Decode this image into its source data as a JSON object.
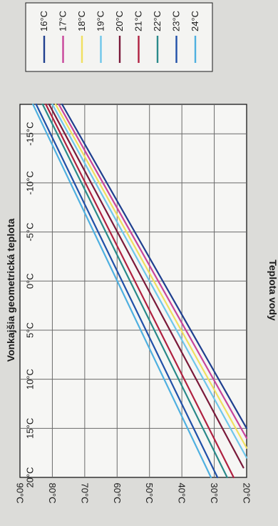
{
  "chart_data": {
    "type": "line",
    "xlabel": "Vonkajšia geometrická teplota",
    "ylabel": "Teplota vody",
    "x_ticks": [
      "20°C",
      "15°C",
      "10°C",
      "5°C",
      "0°C",
      "-5°C",
      "-10°C",
      "-15°C"
    ],
    "y_ticks": [
      "20°C",
      "30°C",
      "40°C",
      "50°C",
      "60°C",
      "70°C",
      "80°C",
      "90°C"
    ],
    "xlim": [
      20,
      -18
    ],
    "ylim": [
      20,
      90
    ],
    "grid": true,
    "legend_position": "top-right",
    "series": [
      {
        "name": "16°C",
        "color": "#1f3f8f",
        "x": [
          15,
          -18
        ],
        "y": [
          20,
          77
        ]
      },
      {
        "name": "17°C",
        "color": "#c8449a",
        "x": [
          16,
          -18
        ],
        "y": [
          20,
          78
        ]
      },
      {
        "name": "18°C",
        "color": "#f0e060",
        "x": [
          17,
          -18
        ],
        "y": [
          20,
          79
        ]
      },
      {
        "name": "19°C",
        "color": "#6ec6ea",
        "x": [
          18,
          -18
        ],
        "y": [
          20,
          80
        ]
      },
      {
        "name": "20°C",
        "color": "#7a1a3a",
        "x": [
          19,
          -18
        ],
        "y": [
          21,
          81
        ]
      },
      {
        "name": "21°C",
        "color": "#b02040",
        "x": [
          20,
          -18
        ],
        "y": [
          24,
          82
        ]
      },
      {
        "name": "22°C",
        "color": "#2a8a8a",
        "x": [
          20,
          -18
        ],
        "y": [
          26,
          83
        ]
      },
      {
        "name": "23°C",
        "color": "#2050a8",
        "x": [
          20,
          -18
        ],
        "y": [
          29,
          85
        ]
      },
      {
        "name": "24°C",
        "color": "#4fb0e0",
        "x": [
          20,
          -18
        ],
        "y": [
          31,
          86
        ]
      }
    ]
  }
}
